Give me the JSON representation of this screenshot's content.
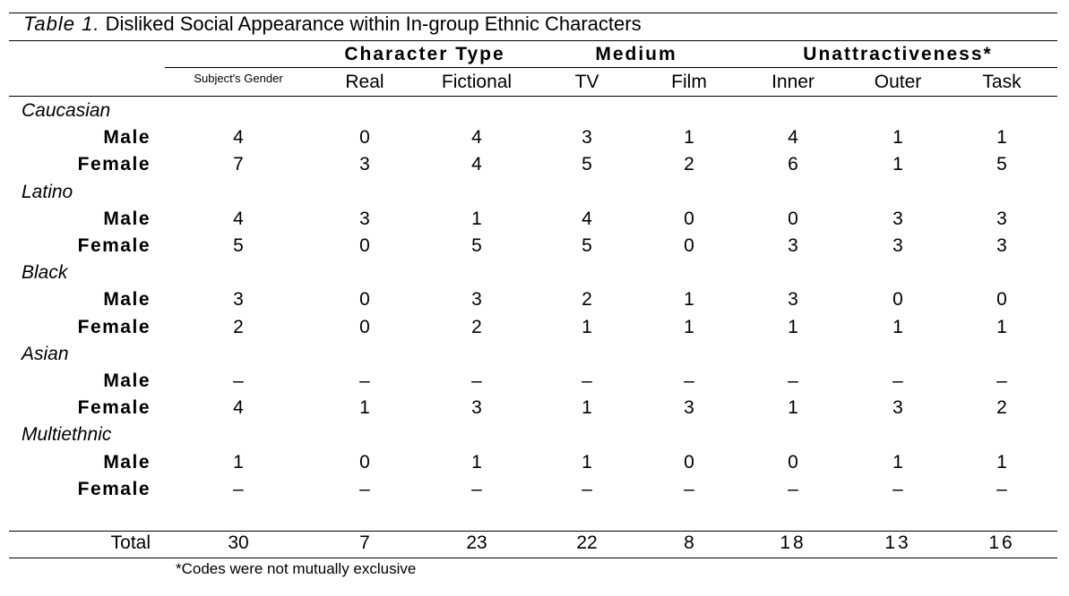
{
  "caption": {
    "label": "Table 1.",
    "title": "Disliked Social Appearance within In-group Ethnic Characters"
  },
  "column_groups": [
    "Character Type",
    "Medium",
    "Unattractiveness*"
  ],
  "columns": [
    "Subject's Gender",
    "Real",
    "Fictional",
    "TV",
    "Film",
    "Inner",
    "Outer",
    "Task"
  ],
  "groups": [
    {
      "name": "Caucasian",
      "rows": [
        {
          "gender": "Male",
          "values": [
            "4",
            "0",
            "4",
            "3",
            "1",
            "4",
            "1",
            "1"
          ]
        },
        {
          "gender": "Female",
          "values": [
            "7",
            "3",
            "4",
            "5",
            "2",
            "6",
            "1",
            "5"
          ]
        }
      ]
    },
    {
      "name": "Latino",
      "rows": [
        {
          "gender": "Male",
          "values": [
            "4",
            "3",
            "1",
            "4",
            "0",
            "0",
            "3",
            "3"
          ]
        },
        {
          "gender": "Female",
          "values": [
            "5",
            "0",
            "5",
            "5",
            "0",
            "3",
            "3",
            "3"
          ]
        }
      ]
    },
    {
      "name": "Black",
      "rows": [
        {
          "gender": "Male",
          "values": [
            "3",
            "0",
            "3",
            "2",
            "1",
            "3",
            "0",
            "0"
          ]
        },
        {
          "gender": "Female",
          "values": [
            "2",
            "0",
            "2",
            "1",
            "1",
            "1",
            "1",
            "1"
          ]
        }
      ]
    },
    {
      "name": "Asian",
      "rows": [
        {
          "gender": "Male",
          "values": [
            "–",
            "–",
            "–",
            "–",
            "–",
            "–",
            "–",
            "–"
          ]
        },
        {
          "gender": "Female",
          "values": [
            "4",
            "1",
            "3",
            "1",
            "3",
            "1",
            "3",
            "2"
          ]
        }
      ]
    },
    {
      "name": "Multiethnic",
      "rows": [
        {
          "gender": "Male",
          "values": [
            "1",
            "0",
            "1",
            "1",
            "0",
            "0",
            "1",
            "1"
          ]
        },
        {
          "gender": "Female",
          "values": [
            "–",
            "–",
            "–",
            "–",
            "–",
            "–",
            "–",
            "–"
          ]
        }
      ]
    }
  ],
  "total": {
    "label": "Total",
    "values": [
      "30",
      "7",
      "23",
      "22",
      "8",
      "18",
      "13",
      "16"
    ]
  },
  "footnote": "*Codes were not mutually exclusive"
}
